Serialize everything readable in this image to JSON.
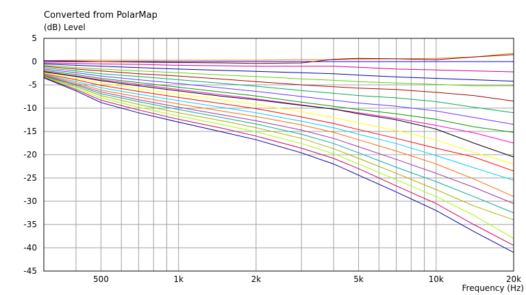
{
  "chart_data": {
    "type": "line",
    "title": "Converted from PolarMap",
    "ylabel": "(dB)  Level",
    "xlabel": "Frequency  (Hz)",
    "x_scale": "log",
    "xlim": [
      300,
      20000
    ],
    "ylim": [
      -45,
      5
    ],
    "grid": true,
    "x_tick_labels": [
      {
        "value": 500,
        "label": "500"
      },
      {
        "value": 1000,
        "label": "1k"
      },
      {
        "value": 2000,
        "label": "2k"
      },
      {
        "value": 5000,
        "label": "5k"
      },
      {
        "value": 10000,
        "label": "10k"
      },
      {
        "value": 20000,
        "label": "20k"
      }
    ],
    "y_ticks": [
      5,
      0,
      -5,
      -10,
      -15,
      -20,
      -25,
      -30,
      -35,
      -40,
      -45
    ],
    "x": [
      300,
      400,
      500,
      700,
      1000,
      1500,
      2000,
      3000,
      4000,
      5000,
      7000,
      10000,
      14000,
      20000
    ],
    "series": [
      {
        "color": "#ff8000",
        "values": [
          0.2,
          0.3,
          0.3,
          0.3,
          0.3,
          0.3,
          0.3,
          0.4,
          0.4,
          0.5,
          0.6,
          0.7,
          1.0,
          1.8
        ]
      },
      {
        "color": "#0000ff",
        "values": [
          0,
          0,
          0,
          0,
          0,
          0,
          0,
          0,
          0,
          0,
          0,
          0,
          0,
          0
        ]
      },
      {
        "color": "#800000",
        "values": [
          0.2,
          0.1,
          0,
          -0.1,
          -0.2,
          -0.3,
          -0.4,
          -0.3,
          0.5,
          0.7,
          0.6,
          0.4,
          1.0,
          1.5
        ]
      },
      {
        "color": "#cc0099",
        "values": [
          -0.3,
          -0.4,
          -0.5,
          -0.6,
          -0.8,
          -0.9,
          -1.0,
          -1.0,
          -1.0,
          -1.2,
          -1.6,
          -1.8,
          -2.0,
          -2.2
        ]
      },
      {
        "color": "#0000aa",
        "values": [
          -0.5,
          -0.8,
          -1.0,
          -1.3,
          -1.6,
          -1.9,
          -2.1,
          -2.4,
          -2.6,
          -2.9,
          -3.3,
          -3.6,
          -3.9,
          -4.2
        ]
      },
      {
        "color": "#66cc00",
        "values": [
          -0.8,
          -1.3,
          -1.6,
          -2.0,
          -2.4,
          -2.9,
          -3.2,
          -3.7,
          -4.0,
          -4.3,
          -4.6,
          -4.9,
          -5.2,
          -5.2
        ]
      },
      {
        "color": "#aa0000",
        "values": [
          -1.0,
          -1.6,
          -2.0,
          -2.6,
          -3.1,
          -3.8,
          -4.3,
          -5.0,
          -5.4,
          -5.7,
          -6.0,
          -6.6,
          -7.3,
          -8.5
        ]
      },
      {
        "color": "#00aa55",
        "values": [
          -1.3,
          -2.0,
          -2.6,
          -3.2,
          -3.9,
          -4.7,
          -5.3,
          -6.2,
          -6.8,
          -7.3,
          -7.8,
          -8.6,
          -9.8,
          -11.0
        ]
      },
      {
        "color": "#6633ff",
        "values": [
          -1.6,
          -2.4,
          -3.1,
          -3.9,
          -4.7,
          -5.7,
          -6.4,
          -7.5,
          -8.3,
          -8.9,
          -9.6,
          -10.6,
          -12.0,
          -13.5
        ]
      },
      {
        "color": "#009900",
        "values": [
          -1.9,
          -2.8,
          -3.6,
          -4.5,
          -5.5,
          -6.6,
          -7.4,
          -8.7,
          -9.6,
          -10.3,
          -11.2,
          -12.4,
          -14.0,
          -15.2
        ]
      },
      {
        "color": "#ff00cc",
        "values": [
          -2.1,
          -3.1,
          -3.9,
          -4.9,
          -6.0,
          -7.2,
          -8.0,
          -9.3,
          -10.2,
          -11.0,
          -12.2,
          -13.7,
          -15.3,
          -17.5
        ]
      },
      {
        "color": "#000000",
        "values": [
          -2.2,
          -3.2,
          -4.1,
          -5.2,
          -6.3,
          -7.5,
          -8.2,
          -9.4,
          -10.2,
          -11.2,
          -12.5,
          -14.5,
          -17.5,
          -20.5
        ]
      },
      {
        "color": "#ffff00",
        "values": [
          -2.4,
          -3.6,
          -4.6,
          -5.8,
          -7.0,
          -8.3,
          -9.2,
          -10.8,
          -12.0,
          -13.2,
          -14.8,
          -16.8,
          -19.5,
          -22.0
        ]
      },
      {
        "color": "#ff0000",
        "values": [
          -2.6,
          -3.9,
          -5.1,
          -6.4,
          -7.7,
          -9.1,
          -10.1,
          -11.9,
          -13.3,
          -14.6,
          -16.5,
          -18.6,
          -20.5,
          -23.5
        ]
      },
      {
        "color": "#00ccff",
        "values": [
          -2.8,
          -4.3,
          -5.6,
          -7.0,
          -8.4,
          -9.9,
          -11.0,
          -12.8,
          -14.2,
          -15.6,
          -17.6,
          -20.2,
          -22.8,
          -25.5
        ]
      },
      {
        "color": "#ff6600",
        "values": [
          -2.9,
          -4.6,
          -6.1,
          -7.6,
          -9.1,
          -10.7,
          -11.8,
          -13.6,
          -15.2,
          -16.8,
          -19.2,
          -22.0,
          -25.2,
          -29.0
        ]
      },
      {
        "color": "#993399",
        "values": [
          -3.0,
          -4.9,
          -6.5,
          -8.2,
          -9.8,
          -11.5,
          -12.7,
          -14.7,
          -16.5,
          -18.3,
          -21.0,
          -24.0,
          -27.0,
          -30.5
        ]
      },
      {
        "color": "#00aa99",
        "values": [
          -3.1,
          -5.1,
          -6.9,
          -8.6,
          -10.3,
          -12.1,
          -13.4,
          -15.6,
          -17.6,
          -19.6,
          -22.7,
          -25.8,
          -29.0,
          -32.5
        ]
      },
      {
        "color": "#aaaa00",
        "values": [
          -3.2,
          -5.4,
          -7.3,
          -9.2,
          -11.0,
          -12.8,
          -14.2,
          -16.5,
          -18.7,
          -20.8,
          -24.0,
          -27.5,
          -31.0,
          -34.0
        ]
      },
      {
        "color": "#99ff00",
        "values": [
          -3.3,
          -5.7,
          -7.8,
          -9.8,
          -11.7,
          -13.6,
          -15.1,
          -17.6,
          -19.8,
          -22.0,
          -25.4,
          -29.0,
          -33.0,
          -38.0
        ]
      },
      {
        "color": "#cc0066",
        "values": [
          -3.4,
          -6.0,
          -8.3,
          -10.4,
          -12.4,
          -14.4,
          -16.0,
          -18.6,
          -20.8,
          -23.0,
          -26.7,
          -30.5,
          -35.0,
          -39.5
        ]
      },
      {
        "color": "#000099",
        "values": [
          -3.5,
          -6.3,
          -8.8,
          -11.0,
          -13.0,
          -15.2,
          -16.8,
          -19.6,
          -22.0,
          -24.4,
          -28.0,
          -32.0,
          -36.5,
          -41.0
        ]
      }
    ]
  }
}
